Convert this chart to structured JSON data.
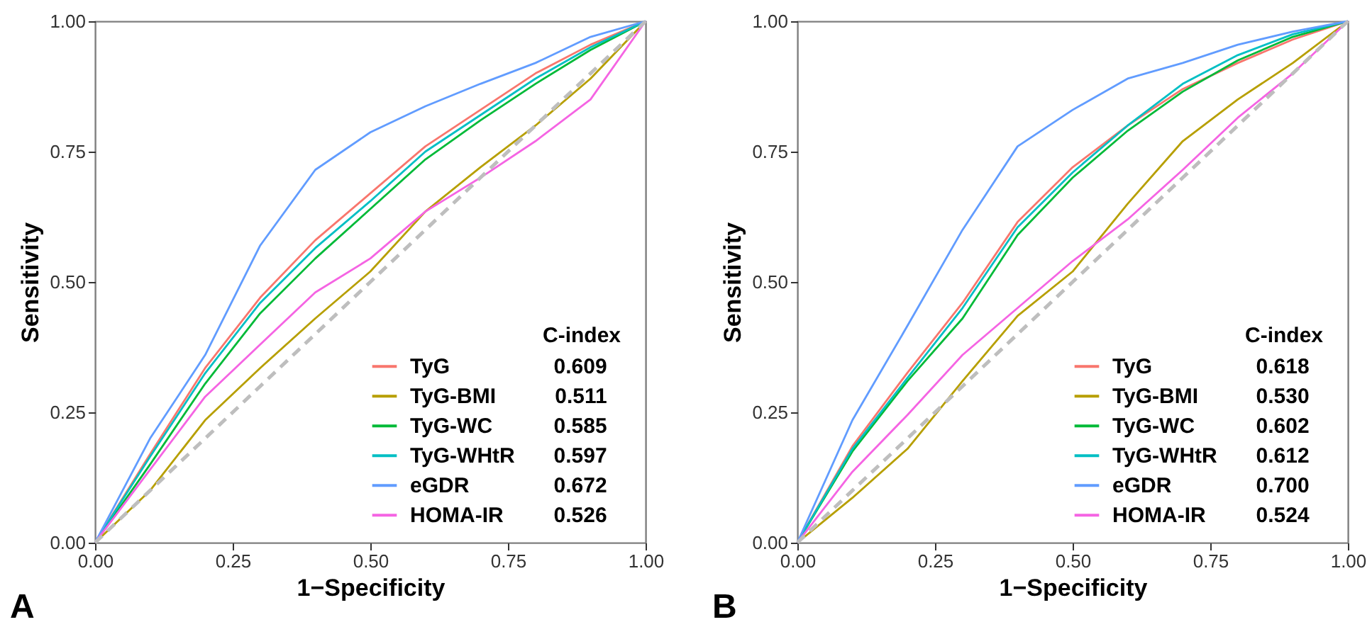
{
  "chart_data": [
    {
      "type": "line",
      "xlabel": "1−Specificity",
      "ylabel": "Sensitivity",
      "legend_title": "C-index",
      "legend": "bottom right",
      "marker": "none",
      "grid": false,
      "annotations": [
        "A",
        "0.609",
        "0.511",
        "0.585",
        "0.597",
        "0.672",
        "0.526"
      ],
      "xlim": [
        0,
        1
      ],
      "ylim": [
        0,
        1
      ],
      "xticks": [
        {
          "value": 0,
          "label": "0.00"
        },
        {
          "value": 0.25,
          "label": "0.25"
        },
        {
          "value": 0.5,
          "label": "0.50"
        },
        {
          "value": 0.75,
          "label": "0.75"
        },
        {
          "value": 1,
          "label": "1.00"
        }
      ],
      "yticks": [
        {
          "value": 0,
          "label": "0.00"
        },
        {
          "value": 0.25,
          "label": "0.25"
        },
        {
          "value": 0.5,
          "label": "0.50"
        },
        {
          "value": 0.75,
          "label": "0.75"
        },
        {
          "value": 1,
          "label": "1.00"
        }
      ],
      "x": [
        0,
        0.1,
        0.2,
        0.3,
        0.4,
        0.5,
        0.6,
        0.7,
        0.8,
        0.9,
        1
      ],
      "series": [
        {
          "name": "TyG",
          "color": "#f8766d",
          "values": [
            0,
            0.17,
            0.335,
            0.47,
            0.58,
            0.67,
            0.76,
            0.83,
            0.9,
            0.955,
            1
          ]
        },
        {
          "name": "TyG-BMI",
          "color": "#b79f00",
          "values": [
            0,
            0.1,
            0.235,
            0.335,
            0.43,
            0.52,
            0.635,
            0.72,
            0.8,
            0.89,
            1
          ]
        },
        {
          "name": "TyG-WC",
          "color": "#00ba38",
          "values": [
            0,
            0.15,
            0.305,
            0.44,
            0.545,
            0.64,
            0.735,
            0.81,
            0.88,
            0.945,
            1
          ]
        },
        {
          "name": "TyG-WHtR",
          "color": "#00bfc4",
          "values": [
            0,
            0.165,
            0.325,
            0.46,
            0.565,
            0.655,
            0.75,
            0.82,
            0.89,
            0.95,
            1
          ]
        },
        {
          "name": "eGDR",
          "color": "#619cff",
          "values": [
            0,
            0.2,
            0.36,
            0.57,
            0.715,
            0.787,
            0.837,
            0.88,
            0.92,
            0.97,
            1
          ]
        },
        {
          "name": "HOMA-IR",
          "color": "#f564e3",
          "values": [
            0,
            0.14,
            0.28,
            0.38,
            0.48,
            0.545,
            0.635,
            0.7,
            0.77,
            0.85,
            1
          ]
        },
        {
          "color": "#bebebe",
          "line_style": "dashed",
          "values": [
            0,
            0.1,
            0.2,
            0.3,
            0.4,
            0.5,
            0.6,
            0.7,
            0.8,
            0.9,
            1
          ]
        }
      ]
    },
    {
      "type": "line",
      "xlabel": "1−Specificity",
      "ylabel": "Sensitivity",
      "legend_title": "C-index",
      "legend": "bottom right",
      "marker": "none",
      "grid": false,
      "annotations": [
        "B",
        "0.618",
        "0.530",
        "0.602",
        "0.612",
        "0.700",
        "0.524"
      ],
      "xlim": [
        0,
        1
      ],
      "ylim": [
        0,
        1
      ],
      "xticks": [
        {
          "value": 0,
          "label": "0.00"
        },
        {
          "value": 0.25,
          "label": "0.25"
        },
        {
          "value": 0.5,
          "label": "0.50"
        },
        {
          "value": 0.75,
          "label": "0.75"
        },
        {
          "value": 1,
          "label": "1.00"
        }
      ],
      "yticks": [
        {
          "value": 0,
          "label": "0.00"
        },
        {
          "value": 0.25,
          "label": "0.25"
        },
        {
          "value": 0.5,
          "label": "0.50"
        },
        {
          "value": 0.75,
          "label": "0.75"
        },
        {
          "value": 1,
          "label": "1.00"
        }
      ],
      "x": [
        0,
        0.1,
        0.2,
        0.3,
        0.4,
        0.5,
        0.6,
        0.7,
        0.8,
        0.9,
        1
      ],
      "series": [
        {
          "name": "TyG",
          "color": "#f8766d",
          "values": [
            0,
            0.185,
            0.326,
            0.46,
            0.615,
            0.72,
            0.8,
            0.87,
            0.92,
            0.965,
            1
          ]
        },
        {
          "name": "TyG-BMI",
          "color": "#b79f00",
          "values": [
            0,
            0.086,
            0.18,
            0.31,
            0.435,
            0.52,
            0.65,
            0.77,
            0.85,
            0.92,
            1
          ]
        },
        {
          "name": "TyG-WC",
          "color": "#00ba38",
          "values": [
            0,
            0.175,
            0.31,
            0.43,
            0.59,
            0.7,
            0.79,
            0.865,
            0.925,
            0.97,
            1
          ]
        },
        {
          "name": "TyG-WHtR",
          "color": "#00bfc4",
          "values": [
            0,
            0.18,
            0.316,
            0.45,
            0.605,
            0.71,
            0.8,
            0.88,
            0.935,
            0.975,
            1
          ]
        },
        {
          "name": "eGDR",
          "color": "#619cff",
          "values": [
            0,
            0.235,
            0.416,
            0.6,
            0.76,
            0.83,
            0.89,
            0.92,
            0.955,
            0.98,
            1
          ]
        },
        {
          "name": "HOMA-IR",
          "color": "#f564e3",
          "values": [
            0,
            0.136,
            0.245,
            0.36,
            0.45,
            0.54,
            0.62,
            0.715,
            0.815,
            0.9,
            1
          ]
        },
        {
          "color": "#bebebe",
          "line_style": "dashed",
          "values": [
            0,
            0.1,
            0.2,
            0.3,
            0.4,
            0.5,
            0.6,
            0.7,
            0.8,
            0.9,
            1
          ]
        }
      ]
    }
  ]
}
